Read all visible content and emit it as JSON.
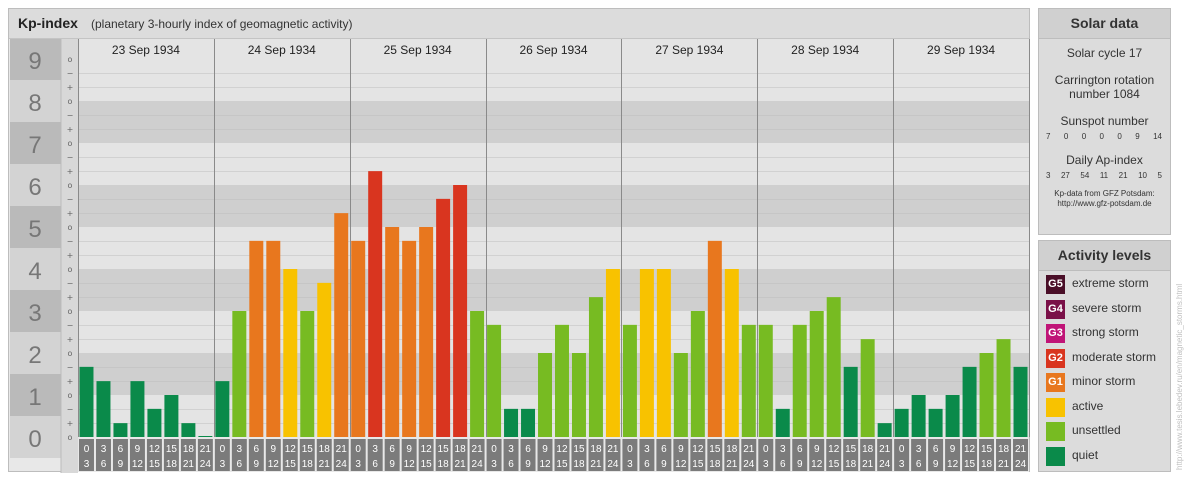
{
  "header": {
    "title": "Kp-index",
    "subtitle": "(planetary 3-hourly index of geomagnetic activity)"
  },
  "chart_data": {
    "type": "bar",
    "y_major_ticks": [
      "0",
      "1",
      "2",
      "3",
      "4",
      "5",
      "6",
      "7",
      "8",
      "9"
    ],
    "y_minor_marks": [
      "o",
      "+",
      "−"
    ],
    "ylim": [
      0,
      9
    ],
    "grid": true,
    "days": [
      "23 Sep 1934",
      "24 Sep 1934",
      "25 Sep 1934",
      "26 Sep 1934",
      "27 Sep 1934",
      "28 Sep 1934",
      "29 Sep 1934"
    ],
    "interval_labels": [
      [
        "0",
        "3"
      ],
      [
        "3",
        "6"
      ],
      [
        "6",
        "9"
      ],
      [
        "9",
        "12"
      ],
      [
        "12",
        "15"
      ],
      [
        "15",
        "18"
      ],
      [
        "18",
        "21"
      ],
      [
        "21",
        "24"
      ]
    ],
    "values": [
      [
        1.67,
        1.33,
        0.33,
        1.33,
        0.67,
        1.0,
        0.33,
        0.0
      ],
      [
        1.33,
        3.0,
        4.67,
        4.67,
        4.0,
        3.0,
        3.67,
        5.33
      ],
      [
        4.67,
        6.33,
        5.0,
        4.67,
        5.0,
        5.67,
        6.0,
        3.0
      ],
      [
        2.67,
        0.67,
        0.67,
        2.0,
        2.67,
        2.0,
        3.33,
        4.0
      ],
      [
        2.67,
        4.0,
        4.0,
        2.0,
        3.0,
        4.67,
        4.0,
        2.67
      ],
      [
        2.67,
        0.67,
        2.67,
        3.0,
        3.33,
        1.67,
        2.33,
        0.33
      ],
      [
        0.67,
        1.0,
        0.67,
        1.0,
        1.67,
        2.0,
        2.33,
        1.67
      ]
    ],
    "colors": {
      "quiet": "#0a8a4a",
      "unsettled": "#77bb22",
      "active": "#f8c200",
      "minor": "#e8771e",
      "moderate": "#d9351f"
    }
  },
  "solar_data": {
    "title": "Solar data",
    "solar_cycle": "Solar cycle 17",
    "carrington_line1": "Carrington rotation",
    "carrington_line2": "number 1084",
    "sunspot_title": "Sunspot number",
    "sunspot_values": [
      "7",
      "0",
      "0",
      "0",
      "0",
      "9",
      "14"
    ],
    "ap_title": "Daily Ap-index",
    "ap_values": [
      "3",
      "27",
      "54",
      "11",
      "21",
      "10",
      "5"
    ],
    "credit_line1": "Kp-data from GFZ Potsdam:",
    "credit_line2": "http://www.gfz-potsdam.de"
  },
  "activity_levels": {
    "title": "Activity levels",
    "items": [
      {
        "code": "G5",
        "label": "extreme storm",
        "color": "#4a0f28"
      },
      {
        "code": "G4",
        "label": "severe storm",
        "color": "#7a1048"
      },
      {
        "code": "G3",
        "label": "strong storm",
        "color": "#c01477"
      },
      {
        "code": "G2",
        "label": "moderate storm",
        "color": "#d9351f"
      },
      {
        "code": "G1",
        "label": "minor storm",
        "color": "#e8771e"
      },
      {
        "code": "",
        "label": "active",
        "color": "#f8c200"
      },
      {
        "code": "",
        "label": "unsettled",
        "color": "#77bb22"
      },
      {
        "code": "",
        "label": "quiet",
        "color": "#0a8a4a"
      }
    ]
  },
  "watermark": "http://www.tesis.lebedev.ru/en/magnetic_storms.html"
}
